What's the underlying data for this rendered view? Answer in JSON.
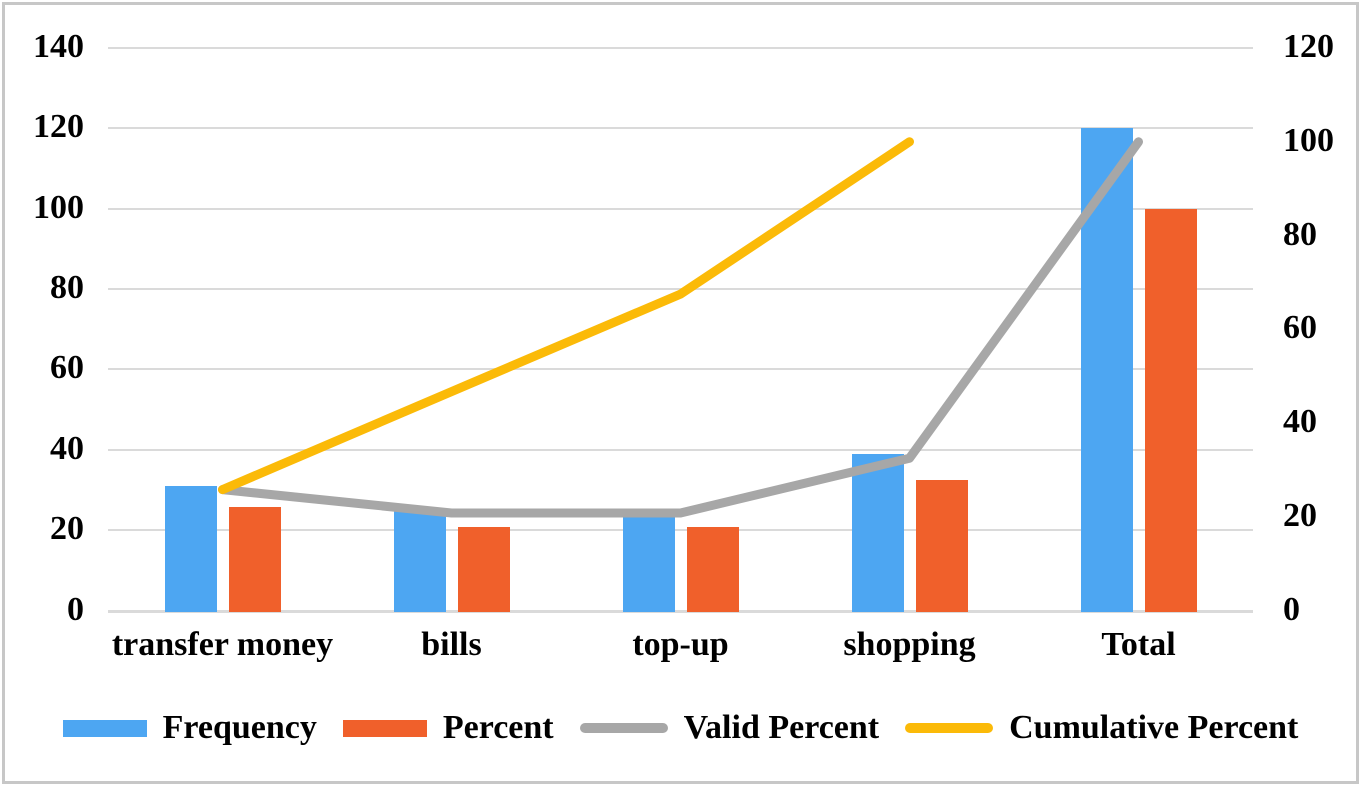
{
  "frame": {
    "background": "#ffffff",
    "border_color": "#c7c7c7"
  },
  "chart_data": {
    "type": "bar",
    "title": "",
    "subtitle": "",
    "categories": [
      "transfer money",
      "bills",
      "top-up",
      "shopping",
      "Total"
    ],
    "series": [
      {
        "name": "Frequency",
        "kind": "bar",
        "axis": "left",
        "color": "#4da6f2",
        "values": [
          31,
          25,
          25,
          39,
          120
        ]
      },
      {
        "name": "Percent",
        "kind": "bar",
        "axis": "left",
        "color": "#f0602b",
        "values": [
          25.8,
          20.8,
          20.8,
          32.5,
          100
        ]
      },
      {
        "name": "Valid Percent",
        "kind": "line",
        "axis": "right",
        "color": "#a7a7a7",
        "values": [
          25.8,
          20.8,
          20.8,
          32.5,
          100
        ]
      },
      {
        "name": "Cumulative Percent",
        "kind": "line",
        "axis": "right",
        "color": "#fbba08",
        "values": [
          25.8,
          46.7,
          67.5,
          100,
          null
        ]
      }
    ],
    "left_axis": {
      "label": "",
      "min": 0,
      "max": 140,
      "tick_step": 20,
      "ticks": [
        0,
        20,
        40,
        60,
        80,
        100,
        120,
        140
      ]
    },
    "right_axis": {
      "label": "",
      "min": 0,
      "max": 120,
      "tick_step": 20,
      "ticks": [
        0,
        20,
        40,
        60,
        80,
        100,
        120
      ]
    },
    "gridlines": {
      "horizontal": true,
      "vertical": false,
      "color": "#dadada"
    },
    "legend": {
      "position": "bottom",
      "entries": [
        "Frequency",
        "Percent",
        "Valid Percent",
        "Cumulative Percent"
      ]
    }
  }
}
